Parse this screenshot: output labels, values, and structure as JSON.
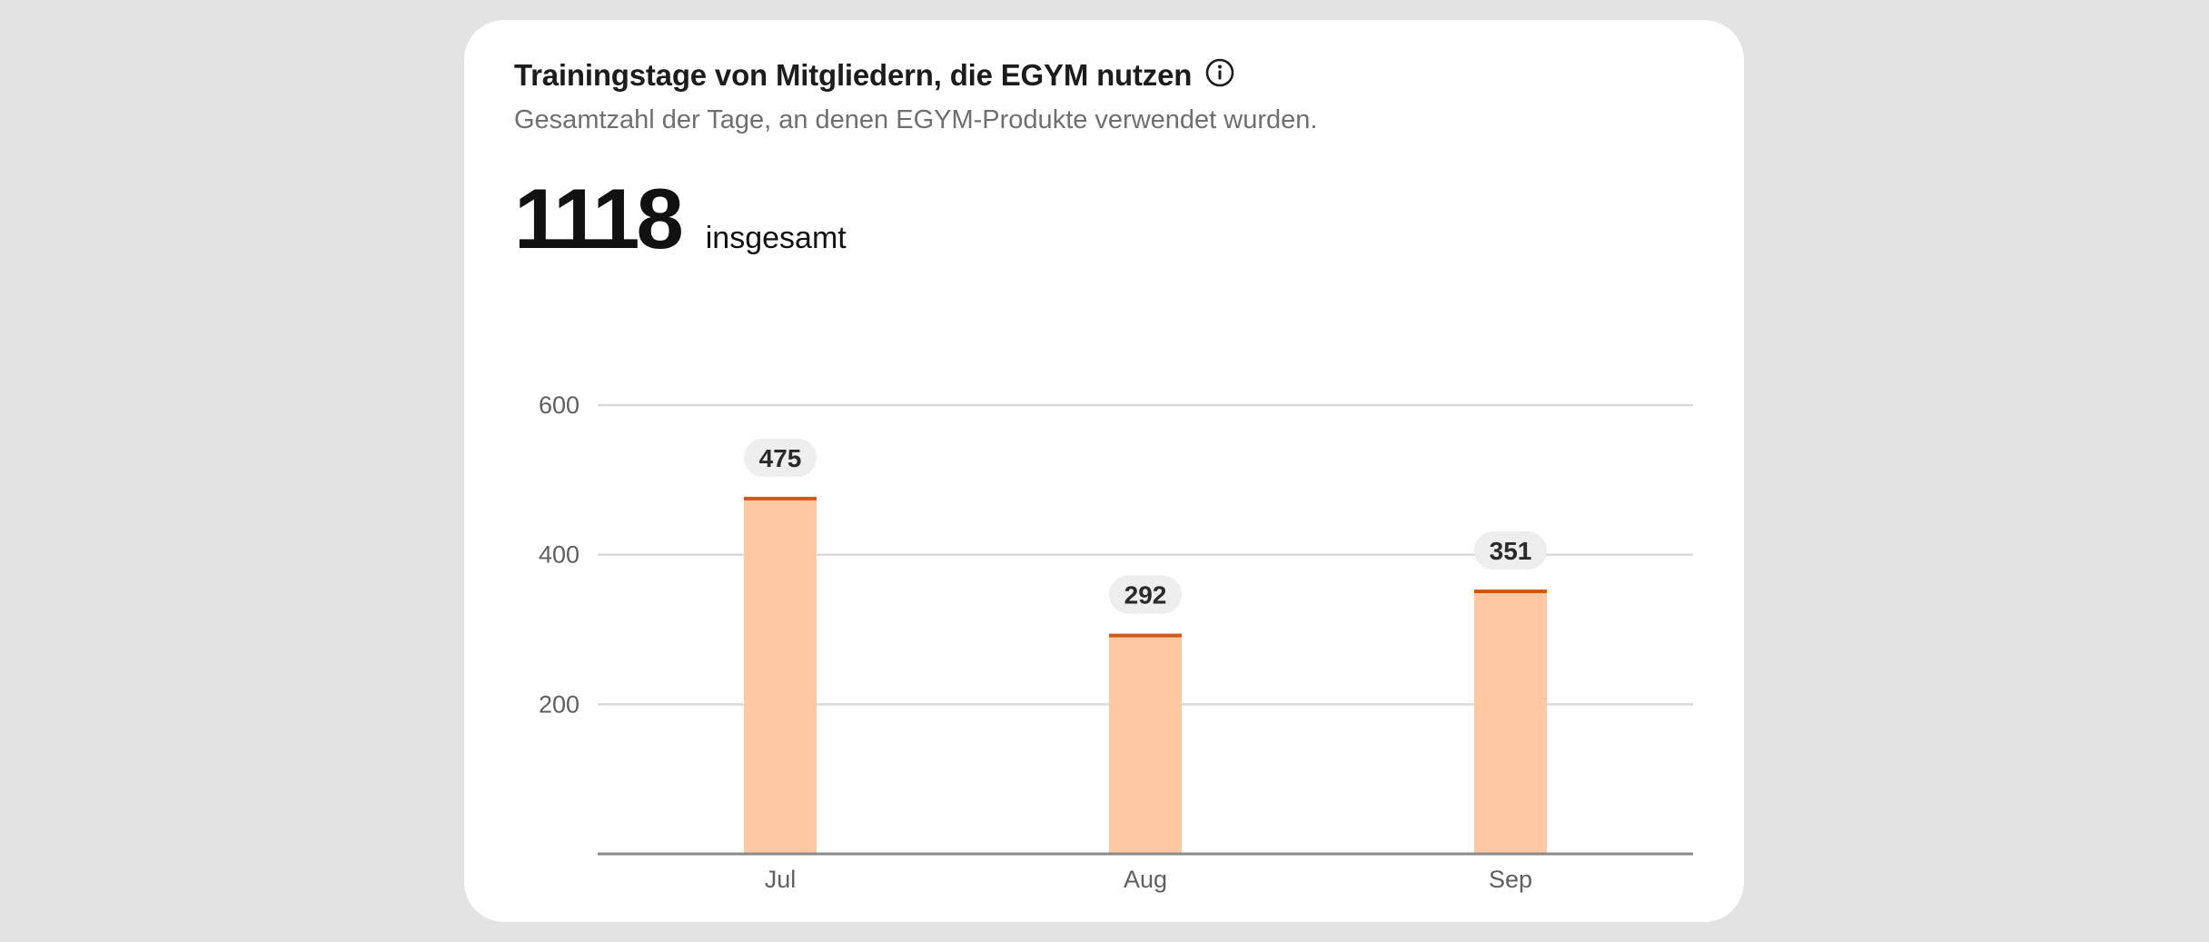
{
  "card": {
    "title": "Trainingstage von Mitgliedern, die EGYM nutzen",
    "subtitle": "Gesamtzahl der Tage, an denen EGYM-Produkte verwendet wurden.",
    "total_value": "1118",
    "total_label": "insgesamt",
    "info_icon": "info-circle-icon"
  },
  "chart_data": {
    "type": "bar",
    "categories": [
      "Jul",
      "Aug",
      "Sep"
    ],
    "values": [
      475,
      292,
      351
    ],
    "ylim": [
      0,
      600
    ],
    "yticks": [
      200,
      400,
      600
    ],
    "grid": true,
    "colors": {
      "bar": "#fdc8a2",
      "bar_top": "#d2571b",
      "grid": "#d9d9d9",
      "axis": "#8a8a8a",
      "label_bg": "#eeeeee"
    }
  }
}
